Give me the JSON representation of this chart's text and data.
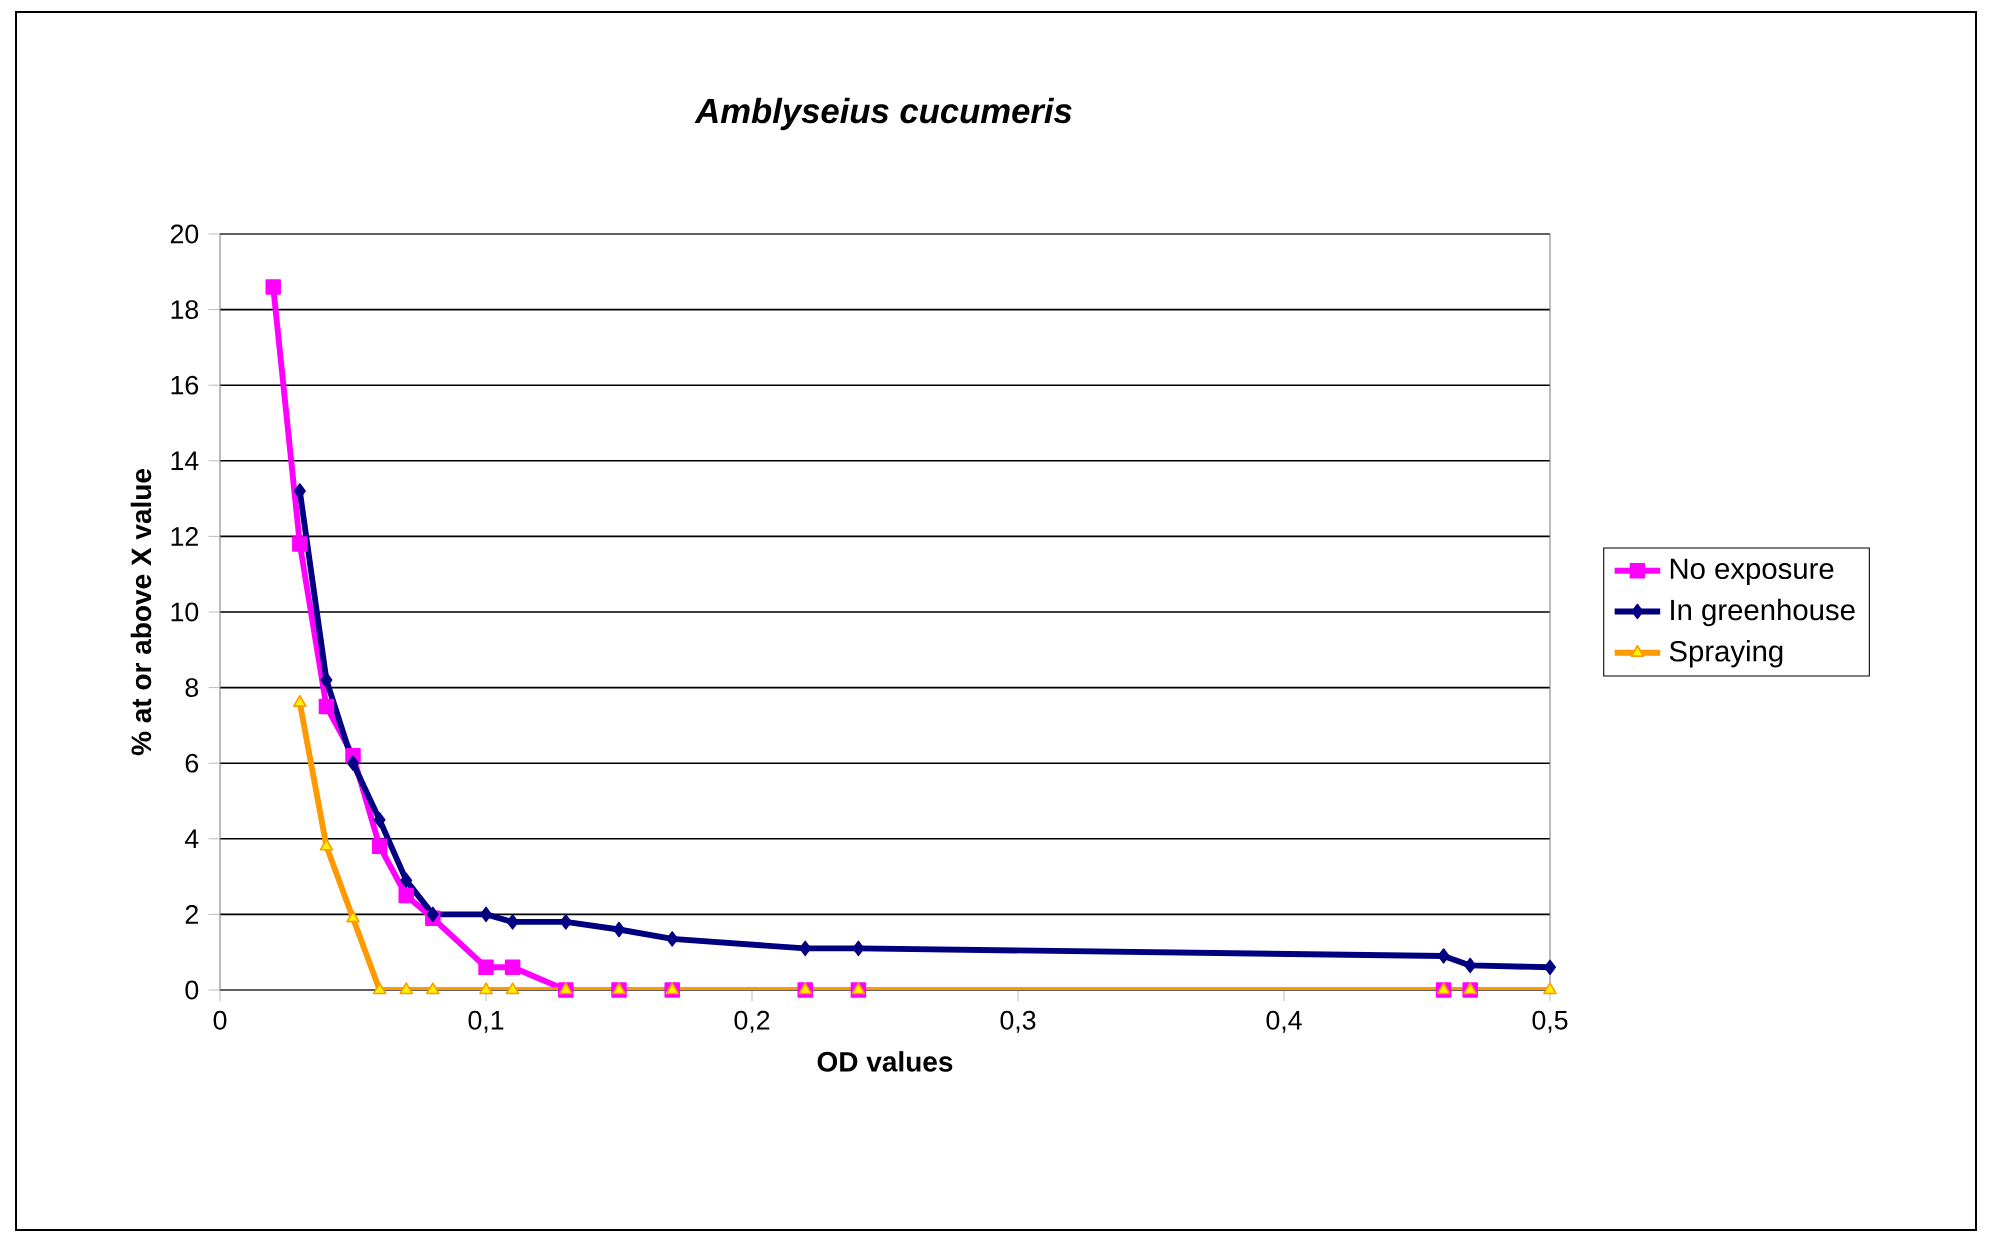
{
  "chart_data": {
    "type": "line",
    "title": "Amblyseius cucumeris",
    "xlabel": "OD values",
    "ylabel": "% at or above X value",
    "xlim": [
      0,
      0.5
    ],
    "ylim": [
      0,
      20
    ],
    "xticks": [
      0,
      {
        "value": 0.1,
        "label": "0,1"
      },
      {
        "value": 0.2,
        "label": "0,2"
      },
      {
        "value": 0.3,
        "label": "0,3"
      },
      {
        "value": 0.4,
        "label": "0,4"
      },
      {
        "value": 0.5,
        "label": "0,5"
      }
    ],
    "yticks": [
      0,
      2,
      4,
      6,
      8,
      10,
      12,
      14,
      16,
      18,
      20
    ],
    "grid": "y",
    "legend": "right",
    "series": [
      {
        "name": "No exposure",
        "color": "#ff00ff",
        "marker": "square",
        "x": [
          0.02,
          0.03,
          0.04,
          0.05,
          0.06,
          0.07,
          0.08,
          0.1,
          0.11,
          0.13,
          0.15,
          0.17,
          0.22,
          0.24,
          0.46,
          0.47
        ],
        "values": [
          18.6,
          11.8,
          7.5,
          6.2,
          3.8,
          2.5,
          1.9,
          0.6,
          0.6,
          0,
          0,
          0,
          0,
          0,
          0,
          0
        ]
      },
      {
        "name": "In greenhouse",
        "color": "#000080",
        "marker": "diamond",
        "x": [
          0.03,
          0.04,
          0.05,
          0.06,
          0.07,
          0.08,
          0.1,
          0.11,
          0.13,
          0.15,
          0.17,
          0.22,
          0.24,
          0.46,
          0.47,
          0.5
        ],
        "values": [
          13.2,
          8.2,
          6.0,
          4.5,
          2.9,
          2.0,
          2.0,
          1.8,
          1.8,
          1.6,
          1.35,
          1.1,
          1.1,
          0.9,
          0.65,
          0.6
        ]
      },
      {
        "name": "Spraying",
        "color": "#ff9900",
        "marker": "triangle",
        "x": [
          0.03,
          0.04,
          0.05,
          0.06,
          0.07,
          0.08,
          0.1,
          0.11,
          0.13,
          0.15,
          0.17,
          0.22,
          0.24,
          0.46,
          0.47,
          0.5
        ],
        "values": [
          7.6,
          3.8,
          1.9,
          0,
          0,
          0,
          0,
          0,
          0,
          0,
          0,
          0,
          0,
          0,
          0,
          0
        ]
      }
    ]
  }
}
